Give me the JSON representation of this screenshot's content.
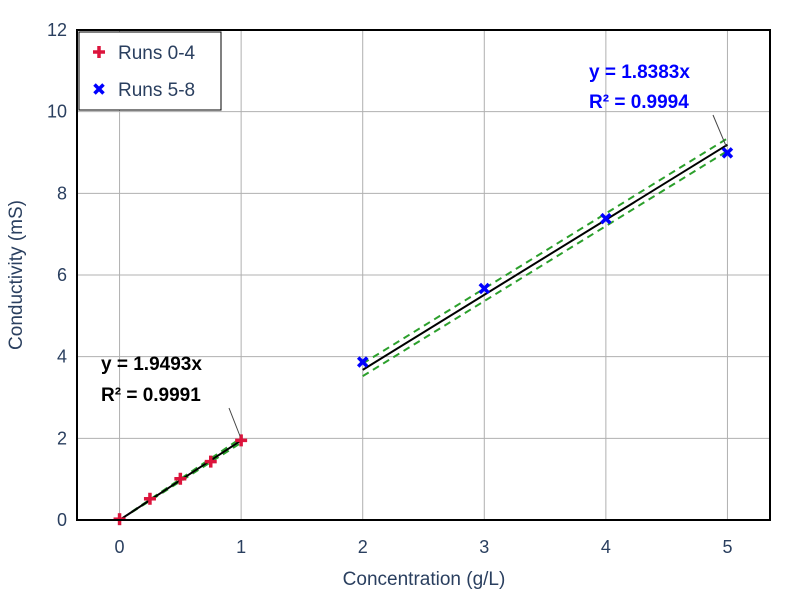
{
  "chart_data": {
    "type": "scatter",
    "xlabel": "Concentration (g/L)",
    "ylabel": "Conductivity (mS)",
    "xlim": [
      -0.35,
      5.35
    ],
    "ylim": [
      0,
      12
    ],
    "x_ticks": [
      0,
      1,
      2,
      3,
      4,
      5
    ],
    "y_ticks": [
      0,
      2,
      4,
      6,
      8,
      10,
      12
    ],
    "grid": true,
    "legend_placement": "top-left",
    "series": [
      {
        "name": "Runs 0-4",
        "marker": "cross",
        "color": "#dc143c",
        "x": [
          0,
          0.25,
          0.5,
          0.75,
          1.0
        ],
        "y": [
          0.02,
          0.52,
          1.01,
          1.43,
          1.95
        ],
        "fit": {
          "slope": 1.9493,
          "x_range": [
            0,
            1.0
          ],
          "band_x_range": [
            0.1,
            1.0
          ]
        },
        "annotation": {
          "line1": "y = 1.9493x",
          "line2": "R² = 0.9991",
          "color": "#000000"
        }
      },
      {
        "name": "Runs 5-8",
        "marker": "x",
        "color": "#0000ff",
        "x": [
          2,
          3,
          4,
          5
        ],
        "y": [
          3.87,
          5.67,
          7.38,
          8.99
        ],
        "fit": {
          "slope": 1.8383,
          "x_range": [
            2,
            5
          ]
        },
        "annotation": {
          "line1": "y = 1.8383x",
          "line2": "R² = 0.9994",
          "color": "#0000ff"
        }
      }
    ],
    "fit_line_color": "#000000",
    "band_color": "#2ca02c"
  }
}
